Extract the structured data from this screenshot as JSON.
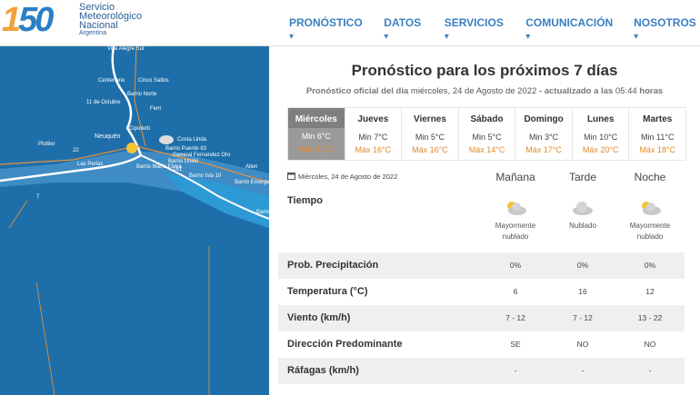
{
  "header": {
    "logo": [
      "1",
      "50"
    ],
    "org_name": [
      "Servicio",
      "Meteorológico",
      "Nacional"
    ],
    "country": "Argentina"
  },
  "nav": [
    "PRONÓSTICO",
    "DATOS",
    "SERVICIOS",
    "COMUNICACIÓN",
    "NOSOTROS"
  ],
  "map": {
    "labels": [
      "Villa Alegre Sur",
      "Centenario",
      "Cinco Saltos",
      "Barrio Norte",
      "11 de Octubre",
      "Ferri",
      "Cipolletti",
      "Costa Linda",
      "Neuquén",
      "Barrio Puente 83",
      "General Fernandez Oro",
      "Plottier",
      "Barrio María Elvira",
      "Allen",
      "Las Perlas",
      "Barrio Unión",
      "Barrio Isla 10",
      "Barrio Emerge",
      "Barrio",
      "22",
      "151",
      "7"
    ]
  },
  "forecast": {
    "title": "Pronóstico para los próximos 7 días",
    "subtitle": [
      "Pronóstico oficial del día",
      "miércoles, 24 de Agosto de 2022",
      "- actualizado a las",
      "05:44",
      "horas"
    ],
    "days": [
      {
        "name": "Miércoles",
        "min": "Min 6°C",
        "max": "Máx 16°C"
      },
      {
        "name": "Jueves",
        "min": "Min 7°C",
        "max": "Máx 16°C"
      },
      {
        "name": "Viernes",
        "min": "Min 5°C",
        "max": "Máx 16°C"
      },
      {
        "name": "Sábado",
        "min": "Min 5°C",
        "max": "Máx 14°C"
      },
      {
        "name": "Domingo",
        "min": "Min 3°C",
        "max": "Máx 17°C"
      },
      {
        "name": "Lunes",
        "min": "Min 10°C",
        "max": "Máx 20°C"
      },
      {
        "name": "Martes",
        "min": "Min 11°C",
        "max": "Máx 18°C"
      }
    ],
    "date": "Miércoles, 24 de Agosto de 2022",
    "periods": [
      "Mañana",
      "Tarde",
      "Noche"
    ],
    "weather": {
      "label": "Tiempo",
      "values": [
        [
          "Mayormente",
          "nublado"
        ],
        [
          "Nublado"
        ],
        [
          "Mayormente",
          "nublado"
        ]
      ]
    },
    "rows": [
      {
        "label": "Prob. Precipitación",
        "values": [
          "0%",
          "0%",
          "0%"
        ]
      },
      {
        "label": "Temperatura (°C)",
        "values": [
          "6",
          "16",
          "12"
        ]
      },
      {
        "label": "Viento (km/h)",
        "values": [
          "7 - 12",
          "7 - 12",
          "13 - 22"
        ]
      },
      {
        "label": "Dirección Predominante",
        "values": [
          "SE",
          "NO",
          "NO"
        ]
      },
      {
        "label": "Ráfagas (km/h)",
        "values": [
          "-",
          "-",
          "-"
        ]
      }
    ]
  }
}
